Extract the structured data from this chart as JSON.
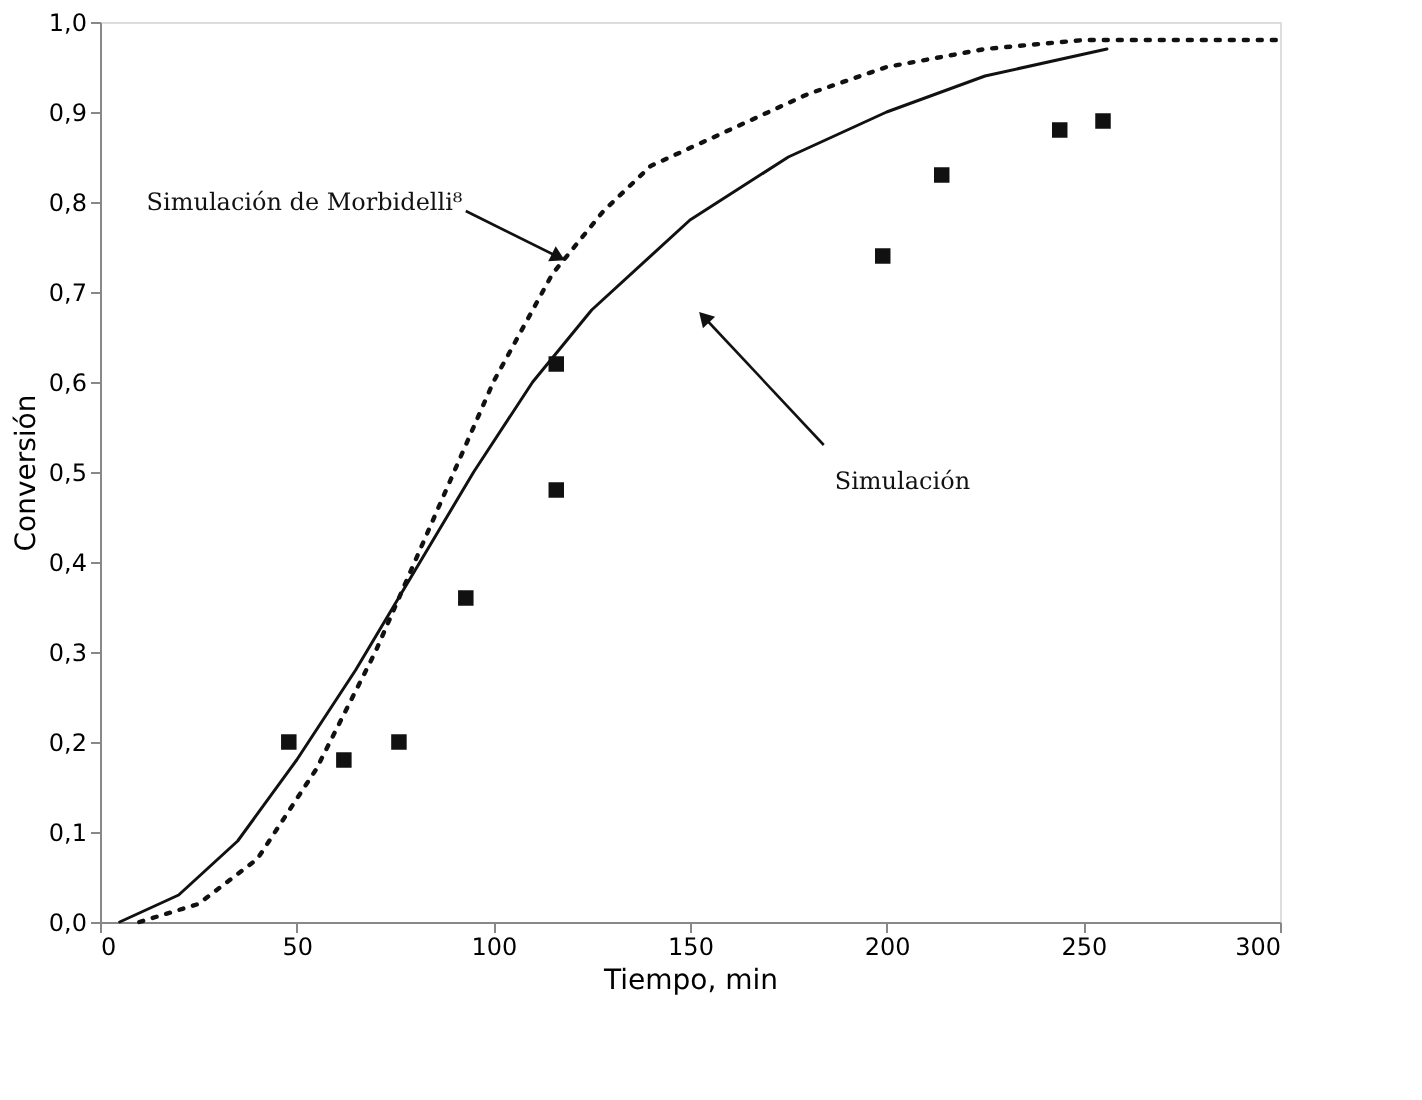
{
  "chart_data": {
    "type": "scatter",
    "xlabel": "Tiempo, min",
    "ylabel": "Conversión",
    "xlim": [
      0,
      300
    ],
    "xticks": [
      0,
      50,
      100,
      150,
      200,
      250,
      300
    ],
    "ylim": [
      0,
      1
    ],
    "yticks": [
      {
        "value": 0,
        "label": "0,0"
      },
      {
        "value": 0.1,
        "label": "0,1"
      },
      {
        "value": 0.2,
        "label": "0,2"
      },
      {
        "value": 0.3,
        "label": "0,3"
      },
      {
        "value": 0.4,
        "label": "0,4"
      },
      {
        "value": 0.5,
        "label": "0,5"
      },
      {
        "value": 0.6,
        "label": "0,6"
      },
      {
        "value": 0.7,
        "label": "0,7"
      },
      {
        "value": 0.8,
        "label": "0,8"
      },
      {
        "value": 0.9,
        "label": "0,9"
      },
      {
        "value": 1,
        "label": "1,0"
      }
    ],
    "grid": false,
    "series": [
      {
        "marker": "square",
        "color": "#111111",
        "x": [
          48,
          62,
          76,
          93,
          116,
          116,
          199,
          214,
          244,
          255
        ],
        "values": [
          0.2,
          0.18,
          0.2,
          0.36,
          0.62,
          0.48,
          0.74,
          0.83,
          0.88,
          0.89
        ]
      },
      {
        "type": "line",
        "line_style": "solid",
        "marker": "none",
        "color": "#111111",
        "x": [
          5,
          20,
          35,
          50,
          65,
          80,
          95,
          110,
          125,
          150,
          175,
          200,
          225,
          256
        ],
        "values": [
          0,
          0.03,
          0.09,
          0.18,
          0.28,
          0.39,
          0.5,
          0.6,
          0.68,
          0.78,
          0.85,
          0.9,
          0.94,
          0.97
        ]
      },
      {
        "type": "line",
        "line_style": "dotted",
        "marker": "none",
        "color": "#111111",
        "x": [
          10,
          25,
          40,
          55,
          70,
          85,
          100,
          115,
          128,
          140,
          160,
          180,
          200,
          225,
          250,
          300
        ],
        "values": [
          0,
          0.02,
          0.07,
          0.17,
          0.3,
          0.45,
          0.6,
          0.72,
          0.79,
          0.84,
          0.88,
          0.92,
          0.95,
          0.97,
          0.98,
          0.98
        ]
      }
    ],
    "annotations": [
      {
        "text": "Simulación de Morbidelli⁸",
        "x": 116,
        "y": 0.74
      },
      {
        "text": "Simulación",
        "x": 154,
        "y": 0.67
      }
    ]
  }
}
